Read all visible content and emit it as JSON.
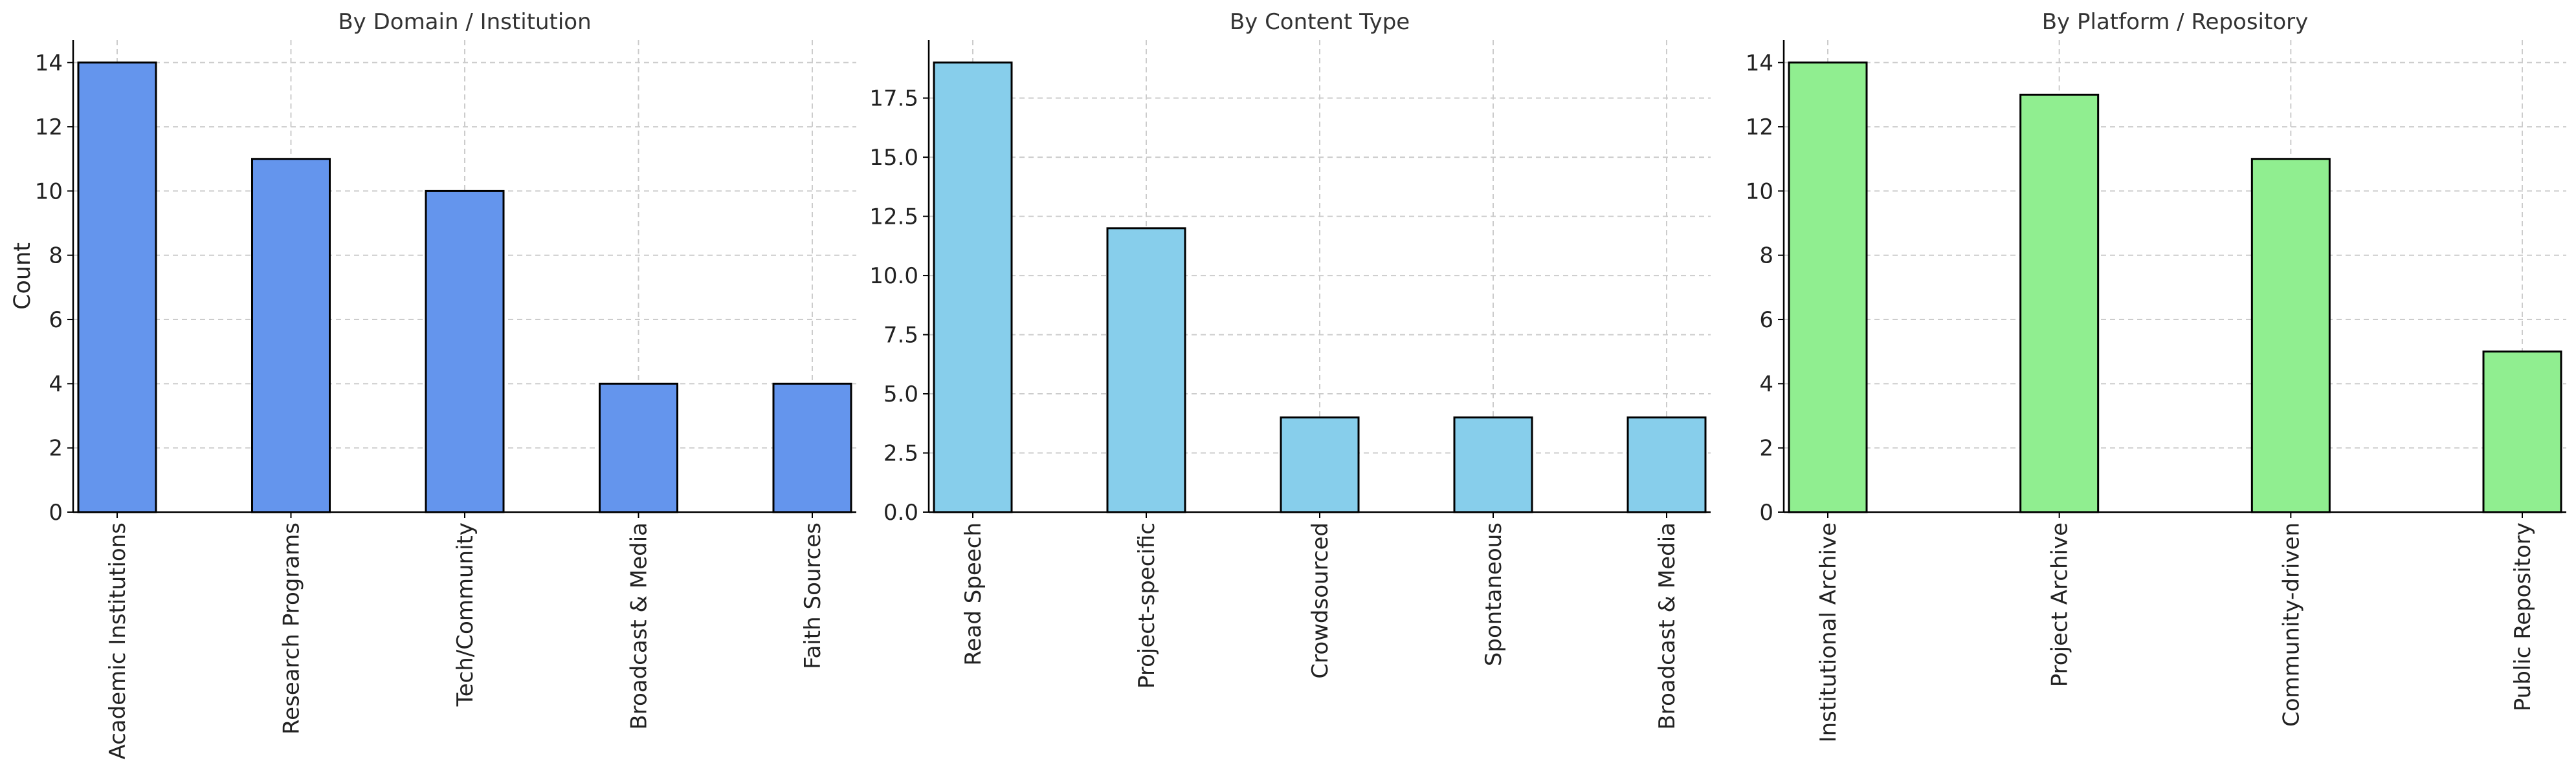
{
  "chart_data": [
    {
      "type": "bar",
      "title": "By Domain / Institution",
      "xlabel": "",
      "ylabel": "Count",
      "categories": [
        "Academic Institutions",
        "Research Programs",
        "Tech/Community",
        "Broadcast & Media",
        "Faith Sources"
      ],
      "values": [
        14,
        11,
        10,
        4,
        4
      ],
      "ylim": [
        0,
        14.7
      ],
      "yticks": [
        0,
        2,
        4,
        6,
        8,
        10,
        12,
        14
      ],
      "ytick_labels": [
        "0",
        "2",
        "4",
        "6",
        "8",
        "10",
        "12",
        "14"
      ],
      "color": "#6495ED",
      "grid": true
    },
    {
      "type": "bar",
      "title": "By Content Type",
      "xlabel": "",
      "ylabel": "",
      "categories": [
        "Read Speech",
        "Project-specific",
        "Crowdsourced",
        "Spontaneous",
        "Broadcast & Media"
      ],
      "values": [
        19,
        12,
        4,
        4,
        4
      ],
      "ylim": [
        0,
        19.95
      ],
      "yticks": [
        0,
        2.5,
        5,
        7.5,
        10,
        12.5,
        15,
        17.5
      ],
      "ytick_labels": [
        "0.0",
        "2.5",
        "5.0",
        "7.5",
        "10.0",
        "12.5",
        "15.0",
        "17.5"
      ],
      "color": "#87CEEB",
      "grid": true
    },
    {
      "type": "bar",
      "title": "By Platform / Repository",
      "xlabel": "",
      "ylabel": "",
      "categories": [
        "Institutional Archive",
        "Project Archive",
        "Community-driven",
        "Public Repository"
      ],
      "values": [
        14,
        13,
        11,
        5
      ],
      "ylim": [
        0,
        14.7
      ],
      "yticks": [
        0,
        2,
        4,
        6,
        8,
        10,
        12,
        14
      ],
      "ytick_labels": [
        "0",
        "2",
        "4",
        "6",
        "8",
        "10",
        "12",
        "14"
      ],
      "color": "#90EE90",
      "grid": true
    }
  ]
}
